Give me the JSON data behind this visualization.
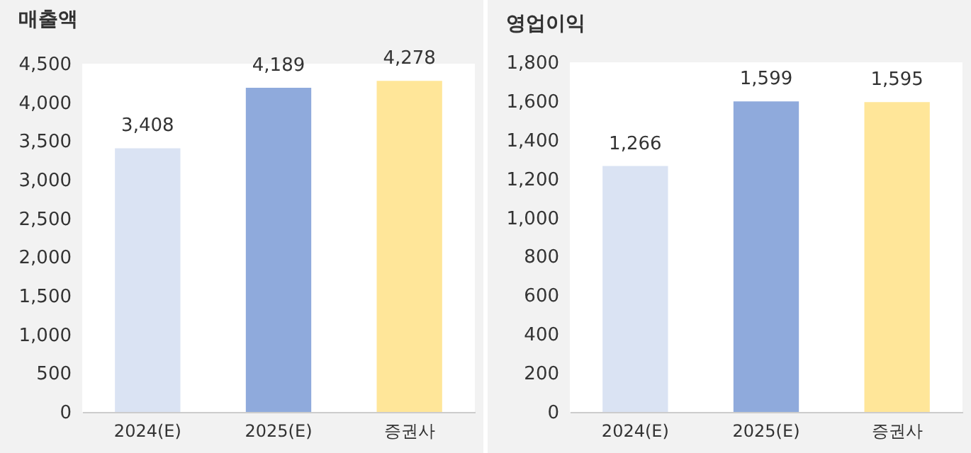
{
  "chart_data": [
    {
      "type": "bar",
      "title": "매출액",
      "categories": [
        "2024(E)",
        "2025(E)",
        "증권사"
      ],
      "values": [
        3408,
        4189,
        4278
      ],
      "value_labels": [
        "3,408",
        "4,189",
        "4,278"
      ],
      "colors": [
        "#dae3f3",
        "#8faadc",
        "#ffe699"
      ],
      "ylim": [
        0,
        4500
      ],
      "yticks": [
        0,
        {
          "value": 500,
          "label": "500"
        },
        {
          "value": 1000,
          "label": "1,000"
        },
        {
          "value": 1500,
          "label": "1,500"
        },
        {
          "value": 2000,
          "label": "2,000"
        },
        {
          "value": 2500,
          "label": "2,500"
        },
        {
          "value": 3000,
          "label": "3,000"
        },
        {
          "value": 3500,
          "label": "3,500"
        },
        {
          "value": 4000,
          "label": "4,000"
        },
        {
          "value": 4500,
          "label": "4,500"
        }
      ],
      "grid": false
    },
    {
      "type": "bar",
      "title": "영업이익",
      "categories": [
        "2024(E)",
        "2025(E)",
        "증권사"
      ],
      "values": [
        1266,
        1599,
        1595
      ],
      "value_labels": [
        "1,266",
        "1,599",
        "1,595"
      ],
      "colors": [
        "#dae3f3",
        "#8faadc",
        "#ffe699"
      ],
      "ylim": [
        0,
        1800
      ],
      "yticks": [
        0,
        {
          "value": 200,
          "label": "200"
        },
        {
          "value": 400,
          "label": "400"
        },
        {
          "value": 600,
          "label": "600"
        },
        {
          "value": 800,
          "label": "800"
        },
        {
          "value": 1000,
          "label": "1,000"
        },
        {
          "value": 1200,
          "label": "1,200"
        },
        {
          "value": 1400,
          "label": "1,400"
        },
        {
          "value": 1600,
          "label": "1,600"
        },
        {
          "value": 1800,
          "label": "1,800"
        }
      ],
      "grid": false
    }
  ]
}
